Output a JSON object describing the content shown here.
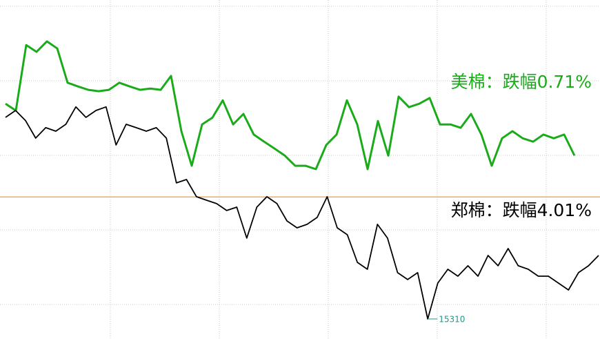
{
  "chart_data": {
    "type": "line",
    "ylim": [
      15220,
      16742
    ],
    "y2lim": [
      65,
      75
    ],
    "reference_line": {
      "value": 15858,
      "color": "#f28c28"
    },
    "annotations": [
      {
        "value": 15310,
        "label": "15310",
        "series": 1,
        "color": "#1a9a8a"
      }
    ],
    "series": [
      {
        "name": "美棉：跌幅0.71%",
        "color": "#1aab1a",
        "axis": "y2",
        "values": [
          71.94,
          71.74,
          73.67,
          73.47,
          73.78,
          73.57,
          72.56,
          72.45,
          72.35,
          72.31,
          72.35,
          72.56,
          72.45,
          72.35,
          72.39,
          72.35,
          72.76,
          71.13,
          70.11,
          71.33,
          71.53,
          72.04,
          71.33,
          71.64,
          71.03,
          70.82,
          70.62,
          70.41,
          70.11,
          70.11,
          70.01,
          70.72,
          71.03,
          72.04,
          71.33,
          70.01,
          71.43,
          70.41,
          72.15,
          71.84,
          71.94,
          72.11,
          71.33,
          71.33,
          71.23,
          71.64,
          71.03,
          70.11,
          70.92,
          71.13,
          70.92,
          70.82,
          71.03,
          70.92,
          71.03,
          70.41
        ]
      },
      {
        "name": "郑棉：跌幅4.01%",
        "color": "#000000",
        "values": [
          16215,
          16246,
          16200,
          16122,
          16169,
          16153,
          16184,
          16262,
          16215,
          16246,
          16262,
          16091,
          16184,
          16169,
          16153,
          16169,
          16122,
          15921,
          15936,
          15859,
          15843,
          15828,
          15797,
          15812,
          15673,
          15812,
          15859,
          15828,
          15750,
          15719,
          15735,
          15766,
          15859,
          15719,
          15688,
          15564,
          15533,
          15735,
          15673,
          15518,
          15487,
          15518,
          15310,
          15471,
          15533,
          15502,
          15549,
          15502,
          15595,
          15549,
          15626,
          15549,
          15533,
          15502,
          15502,
          15471,
          15440,
          15518,
          15549,
          15595
        ]
      }
    ]
  }
}
